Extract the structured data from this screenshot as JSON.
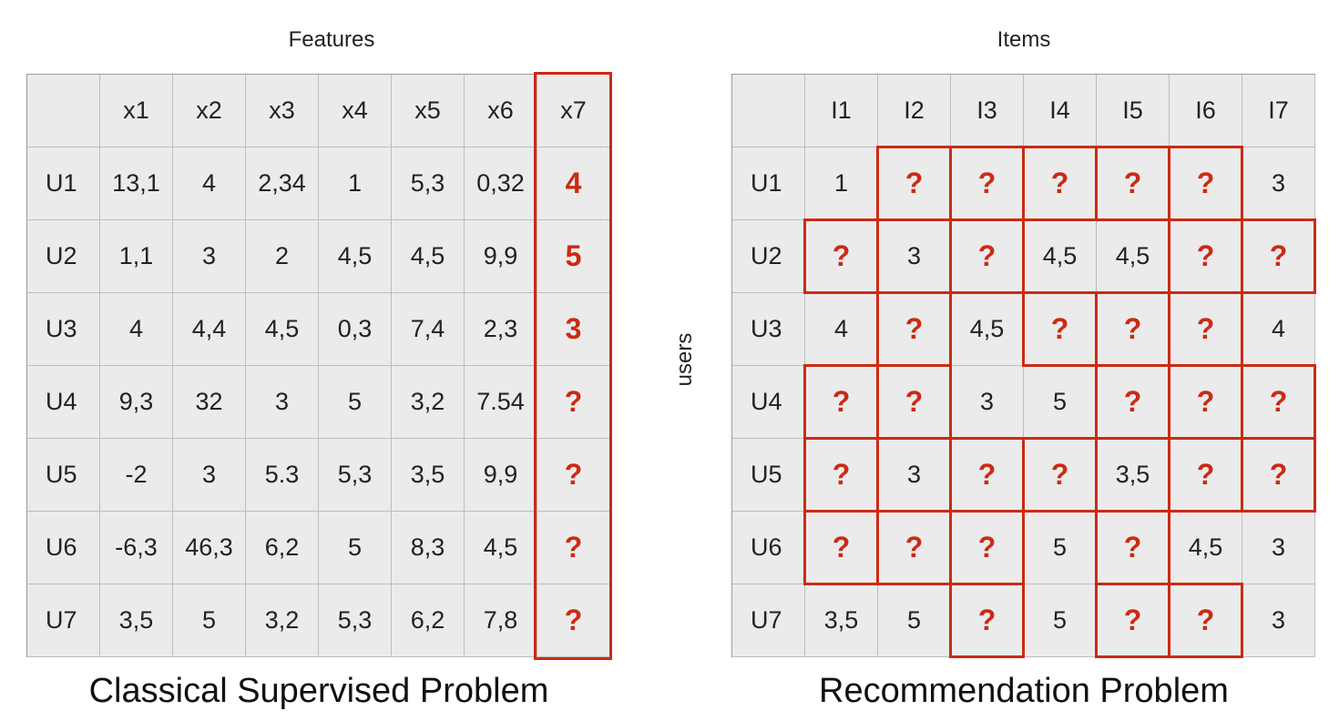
{
  "left": {
    "top_label": "Features",
    "bottom_label": "Classical Supervised Problem",
    "col_headers": [
      "",
      "x1",
      "x2",
      "x3",
      "x4",
      "x5",
      "x6",
      "x7"
    ],
    "rows": [
      [
        "U1",
        "13,1",
        "4",
        "2,34",
        "1",
        "5,3",
        "0,32",
        "4"
      ],
      [
        "U2",
        "1,1",
        "3",
        "2",
        "4,5",
        "4,5",
        "9,9",
        "5"
      ],
      [
        "U3",
        "4",
        "4,4",
        "4,5",
        "0,3",
        "7,4",
        "2,3",
        "3"
      ],
      [
        "U4",
        "9,3",
        "32",
        "3",
        "5",
        "3,2",
        "7.54",
        "?"
      ],
      [
        "U5",
        "-2",
        "3",
        "5.3",
        "5,3",
        "3,5",
        "9,9",
        "?"
      ],
      [
        "U6",
        "-6,3",
        "46,3",
        "6,2",
        "5",
        "8,3",
        "4,5",
        "?"
      ],
      [
        "U7",
        "3,5",
        "5",
        "3,2",
        "5,3",
        "6,2",
        "7,8",
        "?"
      ]
    ]
  },
  "right": {
    "top_label": "Items",
    "side_label": "users",
    "bottom_label": "Recommendation Problem",
    "col_headers": [
      "",
      "I1",
      "I2",
      "I3",
      "I4",
      "I5",
      "I6",
      "I7"
    ],
    "rows": [
      [
        "U1",
        "1",
        "?",
        "?",
        "?",
        "?",
        "?",
        "3"
      ],
      [
        "U2",
        "?",
        "3",
        "?",
        "4,5",
        "4,5",
        "?",
        "?"
      ],
      [
        "U3",
        "4",
        "?",
        "4,5",
        "?",
        "?",
        "?",
        "4"
      ],
      [
        "U4",
        "?",
        "?",
        "3",
        "5",
        "?",
        "?",
        "?"
      ],
      [
        "U5",
        "?",
        "3",
        "?",
        "?",
        "3,5",
        "?",
        "?"
      ],
      [
        "U6",
        "?",
        "?",
        "?",
        "5",
        "?",
        "4,5",
        "3"
      ],
      [
        "U7",
        "3,5",
        "5",
        "?",
        "5",
        "?",
        "?",
        "3"
      ]
    ]
  },
  "colors": {
    "highlight": "#cc2a14",
    "cell_bg": "#ebebeb",
    "grid_line": "#bdbdbd"
  }
}
